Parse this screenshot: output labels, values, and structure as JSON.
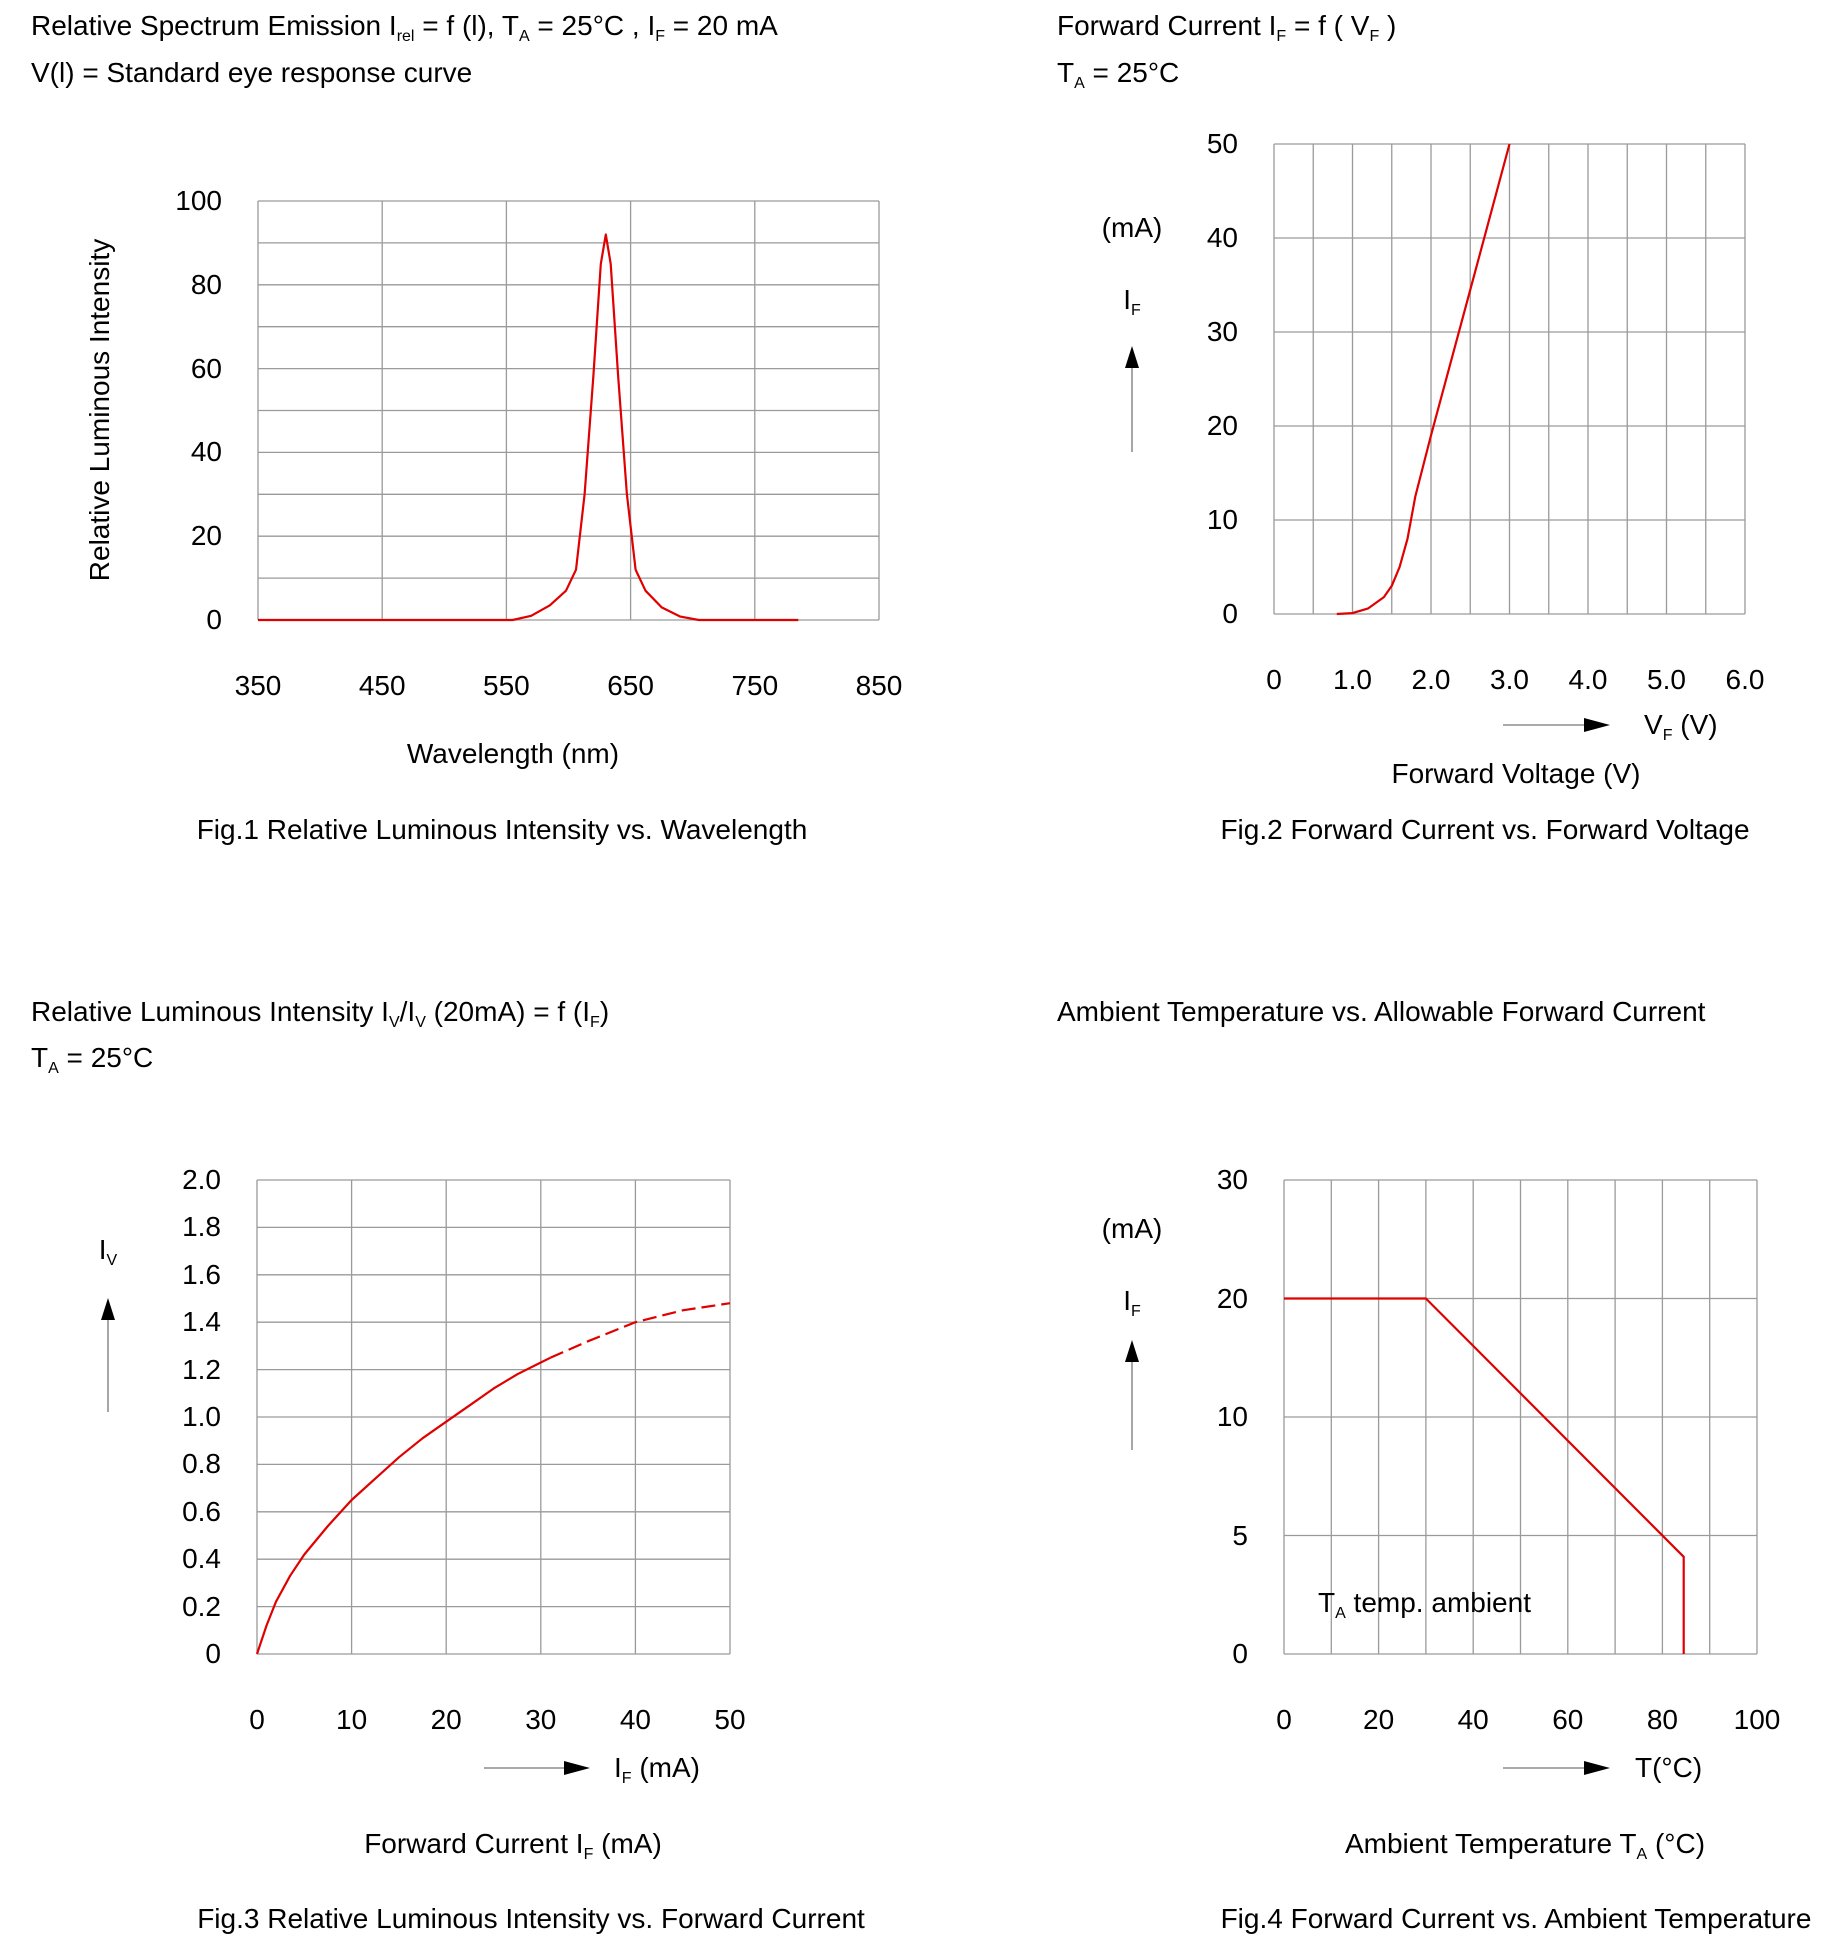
{
  "texts": {
    "fig1_title": [
      {
        "t": "Relative Spectrum Emission I"
      },
      {
        "s": "rel"
      },
      {
        "t": " = f (l), T"
      },
      {
        "s": "A"
      },
      {
        "t": " = 25°C , I"
      },
      {
        "s": "F"
      },
      {
        "t": " = 20 mA"
      }
    ],
    "fig1_title2": [
      {
        "t": "V(l) = Standard eye response curve"
      }
    ],
    "fig1_ylabel": [
      {
        "t": "Relative Luminous Intensity"
      }
    ],
    "fig1_xlabel": [
      {
        "t": "Wavelength (nm)"
      }
    ],
    "fig1_caption": [
      {
        "t": "Fig.1 Relative Luminous Intensity vs. Wavelength"
      }
    ],
    "fig2_title": [
      {
        "t": "Forward Current I"
      },
      {
        "s": "F"
      },
      {
        "t": " = f ( V"
      },
      {
        "s": "F"
      },
      {
        "t": " )"
      }
    ],
    "fig2_title2": [
      {
        "t": "T"
      },
      {
        "s": "A"
      },
      {
        "t": " = 25°C"
      }
    ],
    "fig2_yunit": [
      {
        "t": "(mA)"
      }
    ],
    "fig2_ysym": [
      {
        "t": "I"
      },
      {
        "s": "F"
      }
    ],
    "fig2_xsym": [
      {
        "t": "V"
      },
      {
        "s": "F"
      },
      {
        "t": " (V)"
      }
    ],
    "fig2_xlabel": [
      {
        "t": "Forward Voltage (V)"
      }
    ],
    "fig2_caption": [
      {
        "t": "Fig.2 Forward Current vs. Forward Voltage"
      }
    ],
    "fig3_title": [
      {
        "t": "Relative Luminous Intensity I"
      },
      {
        "s": "V"
      },
      {
        "t": "/I"
      },
      {
        "s": "V"
      },
      {
        "t": " (20mA) = f (I"
      },
      {
        "s": "F"
      },
      {
        "t": ")"
      }
    ],
    "fig3_title2": [
      {
        "t": "T"
      },
      {
        "s": "A"
      },
      {
        "t": " = 25°C"
      }
    ],
    "fig3_ysym": [
      {
        "t": "I"
      },
      {
        "s": "V"
      }
    ],
    "fig3_xsym": [
      {
        "t": "I"
      },
      {
        "s": "F"
      },
      {
        "t": " (mA)"
      }
    ],
    "fig3_xlabel": [
      {
        "t": "Forward Current I"
      },
      {
        "s": "F"
      },
      {
        "t": " (mA)"
      }
    ],
    "fig3_caption": [
      {
        "t": "Fig.3 Relative Luminous Intensity vs. Forward Current"
      }
    ],
    "fig4_title": [
      {
        "t": "Ambient Temperature vs. Allowable Forward Current"
      }
    ],
    "fig4_yunit": [
      {
        "t": "(mA)"
      }
    ],
    "fig4_ysym": [
      {
        "t": "I"
      },
      {
        "s": "F"
      }
    ],
    "fig4_xsym": [
      {
        "t": "T(°C)"
      }
    ],
    "fig4_annotation": [
      {
        "t": "T"
      },
      {
        "s": "A"
      },
      {
        "t": " temp. ambient"
      }
    ],
    "fig4_xlabel": [
      {
        "t": "Ambient Temperature T"
      },
      {
        "s": "A"
      },
      {
        "t": " (°C)"
      }
    ],
    "fig4_caption": [
      {
        "t": "Fig.4 Forward Current vs. Ambient Temperature"
      }
    ]
  },
  "colors": {
    "curve": "#e00000",
    "grid": "#9a9a9a"
  },
  "chart_data": [
    {
      "type": "line",
      "title": "Relative Spectrum Emission Irel = f (l), TA = 25°C , IF = 20 mA",
      "xlabel": "Wavelength (nm)",
      "ylabel": "Relative Luminous Intensity",
      "xlim": [
        350,
        850
      ],
      "ylim": [
        0,
        100
      ],
      "grid": true,
      "x_grid_step": 100,
      "y_grid_step": 10,
      "xticks": [
        "350",
        "450",
        "550",
        "650",
        "750",
        "850"
      ],
      "yticks": [
        "0",
        "20",
        "40",
        "60",
        "80",
        "100"
      ],
      "series": [
        {
          "name": "spectrum",
          "style": "solid",
          "points": [
            [
              350,
              0
            ],
            [
              555,
              0
            ],
            [
              570,
              1
            ],
            [
              585,
              3.5
            ],
            [
              598,
              7
            ],
            [
              606,
              12
            ],
            [
              613,
              30
            ],
            [
              620,
              58
            ],
            [
              626,
              85
            ],
            [
              630,
              92
            ],
            [
              634,
              85
            ],
            [
              640,
              58
            ],
            [
              647,
              30
            ],
            [
              654,
              12
            ],
            [
              662,
              7
            ],
            [
              675,
              3
            ],
            [
              690,
              0.8
            ],
            [
              705,
              0
            ],
            [
              785,
              0
            ]
          ]
        }
      ]
    },
    {
      "type": "line",
      "title": "Forward Current IF = f ( VF )",
      "xlabel": "Forward Voltage (V)",
      "ylabel": "IF (mA)",
      "xlim": [
        0,
        6
      ],
      "ylim": [
        0,
        50
      ],
      "grid": true,
      "x_grid_step": 0.5,
      "y_grid_step": 10,
      "xticks": [
        "0",
        "1.0",
        "2.0",
        "3.0",
        "4.0",
        "5.0",
        "6.0"
      ],
      "yticks": [
        "0",
        "10",
        "20",
        "30",
        "40",
        "50"
      ],
      "series": [
        {
          "name": "IF",
          "style": "solid",
          "points": [
            [
              0.8,
              0
            ],
            [
              1.0,
              0.1
            ],
            [
              1.2,
              0.6
            ],
            [
              1.4,
              1.8
            ],
            [
              1.5,
              3
            ],
            [
              1.6,
              5
            ],
            [
              1.7,
              8
            ],
            [
              1.8,
              12.5
            ],
            [
              2.0,
              19
            ],
            [
              2.5,
              34.5
            ],
            [
              3.0,
              50
            ]
          ]
        }
      ]
    },
    {
      "type": "line",
      "title": "Relative Luminous Intensity IV/IV (20mA) = f (IF)",
      "xlabel": "Forward Current IF (mA)",
      "ylabel": "IV",
      "xlim": [
        0,
        50
      ],
      "ylim": [
        0,
        2.0
      ],
      "grid": true,
      "x_grid_step": 10,
      "y_grid_step": 0.2,
      "xticks": [
        "0",
        "10",
        "20",
        "30",
        "40",
        "50"
      ],
      "yticks": [
        "0",
        "0.2",
        "0.4",
        "0.6",
        "0.8",
        "1.0",
        "1.2",
        "1.4",
        "1.6",
        "1.8",
        "2.0"
      ],
      "series": [
        {
          "name": "measured",
          "style": "solid",
          "points": [
            [
              0,
              0
            ],
            [
              1,
              0.12
            ],
            [
              2,
              0.22
            ],
            [
              3.5,
              0.33
            ],
            [
              5,
              0.42
            ],
            [
              7.5,
              0.54
            ],
            [
              10,
              0.65
            ],
            [
              12.5,
              0.74
            ],
            [
              15,
              0.83
            ],
            [
              17.5,
              0.91
            ],
            [
              20,
              0.98
            ],
            [
              22.5,
              1.05
            ],
            [
              25,
              1.12
            ],
            [
              27.5,
              1.18
            ],
            [
              30,
              1.23
            ],
            [
              31,
              1.25
            ]
          ]
        },
        {
          "name": "extrapolated",
          "style": "dashed",
          "points": [
            [
              31,
              1.25
            ],
            [
              35,
              1.32
            ],
            [
              40,
              1.4
            ],
            [
              45,
              1.45
            ],
            [
              50,
              1.48
            ]
          ]
        }
      ]
    },
    {
      "type": "line",
      "title": "Ambient Temperature vs. Allowable Forward Current",
      "xlabel": "Ambient Temperature TA (°C)",
      "ylabel": "IF (mA)",
      "xlim": [
        0,
        100
      ],
      "ylim": [
        0,
        30
      ],
      "grid": true,
      "y_scale": "tick-index",
      "x_grid_step": 10,
      "xticks": [
        "0",
        "20",
        "40",
        "60",
        "80",
        "100"
      ],
      "yticks": [
        "0",
        "5",
        "10",
        "20",
        "30"
      ],
      "series": [
        {
          "name": "IF max",
          "style": "solid",
          "points": [
            [
              0,
              20
            ],
            [
              30,
              20
            ],
            [
              84.5,
              4.1
            ],
            [
              84.5,
              0
            ]
          ]
        }
      ]
    }
  ]
}
